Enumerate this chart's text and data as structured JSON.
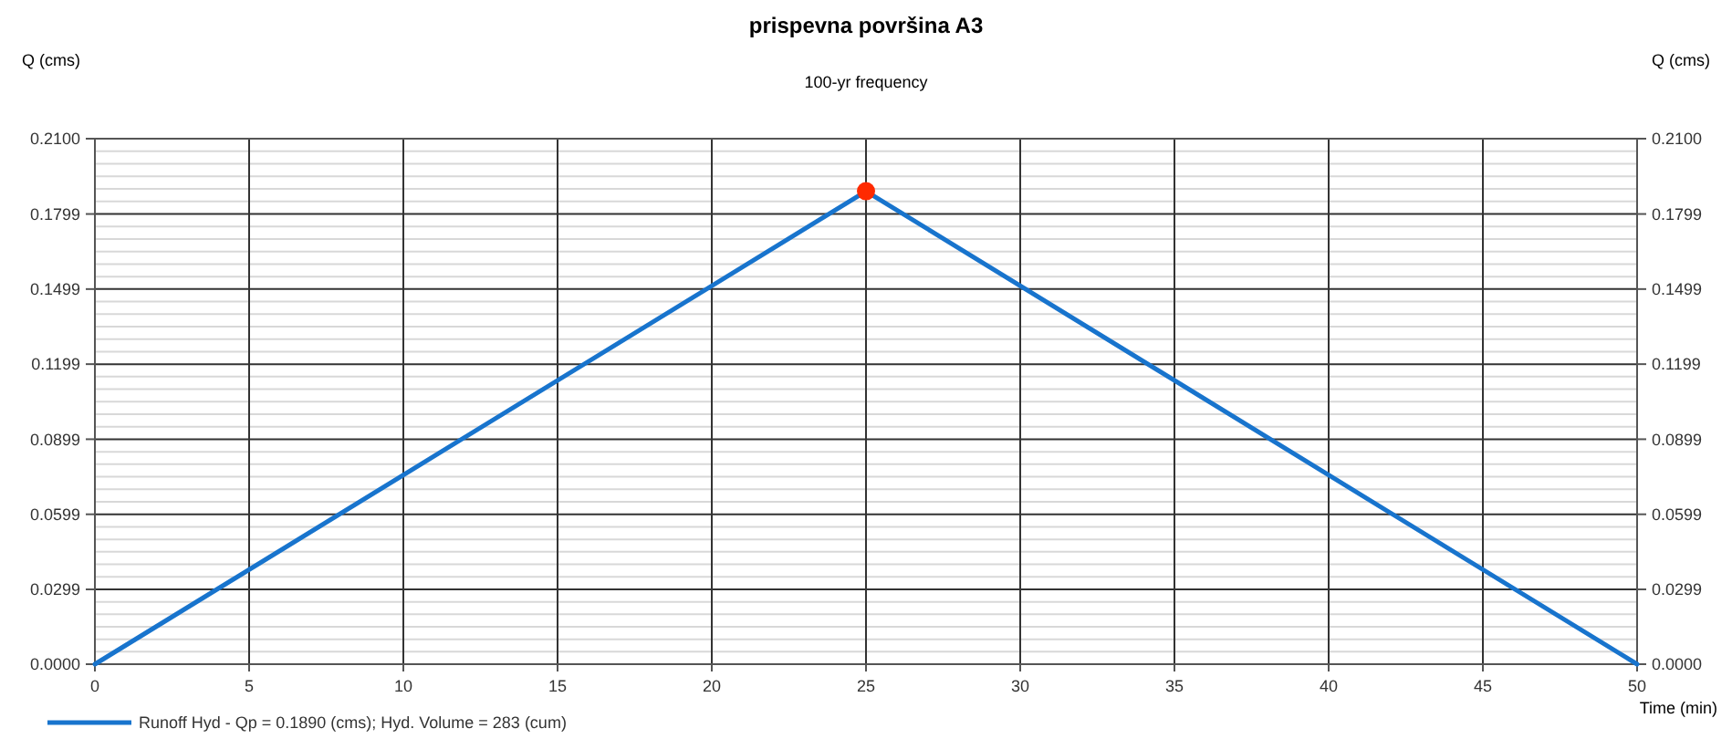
{
  "chart_data": {
    "type": "line",
    "title": "prispevna površina A3",
    "subtitle": "100-yr frequency",
    "xlabel": "Time (min)",
    "ylabel": "Q (cms)",
    "y2label": "Q (cms)",
    "xlim": [
      0,
      50
    ],
    "xticks": [
      0,
      5,
      10,
      15,
      20,
      25,
      30,
      35,
      40,
      45,
      50
    ],
    "ylim": [
      0,
      0.21
    ],
    "yticks": [
      {
        "value": 0,
        "label": "0.0000"
      },
      {
        "value": 0.0299,
        "label": "0.0299"
      },
      {
        "value": 0.0599,
        "label": "0.0599"
      },
      {
        "value": 0.0899,
        "label": "0.0899"
      },
      {
        "value": 0.1199,
        "label": "0.1199"
      },
      {
        "value": 0.1499,
        "label": "0.1499"
      },
      {
        "value": 0.1799,
        "label": "0.1799"
      },
      {
        "value": 0.21,
        "label": "0.2100"
      }
    ],
    "y2lim": [
      0,
      0.21
    ],
    "y2ticks": [
      {
        "value": 0,
        "label": "0.0000"
      },
      {
        "value": 0.0299,
        "label": "0.0299"
      },
      {
        "value": 0.0599,
        "label": "0.0599"
      },
      {
        "value": 0.0899,
        "label": "0.0899"
      },
      {
        "value": 0.1199,
        "label": "0.1199"
      },
      {
        "value": 0.1499,
        "label": "0.1499"
      },
      {
        "value": 0.1799,
        "label": "0.1799"
      },
      {
        "value": 0.21,
        "label": "0.2100"
      }
    ],
    "grid": true,
    "legend": "bottom left",
    "series": [
      {
        "name": "Runoff Hyd - Qp = 0.1890 (cms); Hyd. Volume = 283 (cum)",
        "color": "#1874cd",
        "x": [
          0,
          25,
          50
        ],
        "values": [
          0,
          0.189,
          0
        ],
        "marker": "none"
      },
      {
        "type": "scatter",
        "color": "#ff2a00",
        "x": [
          25
        ],
        "values": [
          0.189
        ],
        "marker": "circle"
      }
    ]
  }
}
